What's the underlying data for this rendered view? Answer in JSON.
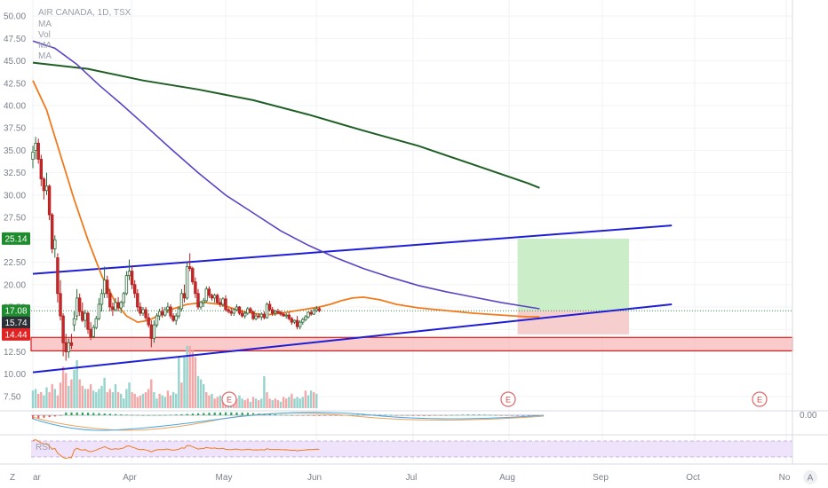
{
  "chart_data": {
    "type": "candlestick",
    "title": "AIR CANADA, 1D, TSX",
    "legend_lines": [
      "MA",
      "Vol",
      "MA",
      "MA"
    ],
    "y_ticks": [
      "50.00",
      "47.50",
      "45.00",
      "42.50",
      "40.00",
      "37.50",
      "35.00",
      "32.50",
      "30.00",
      "27.50",
      "25.00",
      "22.50",
      "20.00",
      "17.50",
      "15.00",
      "12.50",
      "10.00",
      "7.50"
    ],
    "x_ticks": [
      "ar",
      "Apr",
      "May",
      "Jun",
      "Jul",
      "Aug",
      "Sep",
      "Oct",
      "No"
    ],
    "price_badges": [
      {
        "label": "25.14",
        "value": 25.14,
        "color": "#1e8c2e"
      },
      {
        "label": "17.08",
        "value": 17.08,
        "color": "#1e8c2e"
      },
      {
        "label": "15.74",
        "value": 15.74,
        "color": "#2b2f36"
      },
      {
        "label": "14.44",
        "value": 14.44,
        "color": "#e02424"
      }
    ],
    "osc_label": "0.00",
    "rsi_label": "RSI",
    "earnings_label": "E",
    "bottom_left_label": "Z",
    "bottom_right_label": "A",
    "ylim": [
      6,
      51
    ],
    "candles": [
      {
        "o": 34.0,
        "h": 35.5,
        "l": 33.0,
        "c": 34.8
      },
      {
        "o": 35.0,
        "h": 36.5,
        "l": 34.0,
        "c": 35.8
      },
      {
        "o": 35.8,
        "h": 36.3,
        "l": 33.5,
        "c": 34.0
      },
      {
        "o": 34.0,
        "h": 34.5,
        "l": 31.0,
        "c": 31.8
      },
      {
        "o": 31.8,
        "h": 32.0,
        "l": 29.5,
        "c": 30.5
      },
      {
        "o": 30.5,
        "h": 32.5,
        "l": 30.0,
        "c": 31.0
      },
      {
        "o": 31.0,
        "h": 31.2,
        "l": 27.2,
        "c": 27.8
      },
      {
        "o": 27.8,
        "h": 28.0,
        "l": 23.5,
        "c": 24.0
      },
      {
        "o": 24.0,
        "h": 25.5,
        "l": 23.0,
        "c": 25.0
      },
      {
        "o": 23.0,
        "h": 23.5,
        "l": 18.0,
        "c": 19.0
      },
      {
        "o": 19.0,
        "h": 20.5,
        "l": 16.0,
        "c": 16.5
      },
      {
        "o": 16.5,
        "h": 16.8,
        "l": 12.0,
        "c": 13.5
      },
      {
        "o": 13.5,
        "h": 14.5,
        "l": 11.5,
        "c": 12.5
      },
      {
        "o": 12.5,
        "h": 14.0,
        "l": 11.8,
        "c": 13.5
      },
      {
        "o": 13.5,
        "h": 14.5,
        "l": 12.8,
        "c": 13.2
      },
      {
        "o": 15.5,
        "h": 17.0,
        "l": 14.8,
        "c": 16.2
      },
      {
        "o": 16.5,
        "h": 19.5,
        "l": 16.0,
        "c": 18.5
      },
      {
        "o": 18.5,
        "h": 19.0,
        "l": 16.5,
        "c": 17.0
      },
      {
        "o": 17.0,
        "h": 18.0,
        "l": 15.8,
        "c": 16.0
      },
      {
        "o": 16.0,
        "h": 17.2,
        "l": 15.2,
        "c": 16.8
      },
      {
        "o": 16.8,
        "h": 17.0,
        "l": 14.5,
        "c": 15.0
      },
      {
        "o": 15.0,
        "h": 15.8,
        "l": 13.8,
        "c": 14.2
      },
      {
        "o": 14.2,
        "h": 15.5,
        "l": 14.0,
        "c": 15.2
      },
      {
        "o": 15.2,
        "h": 16.5,
        "l": 15.0,
        "c": 16.2
      },
      {
        "o": 16.2,
        "h": 18.5,
        "l": 16.0,
        "c": 17.8
      },
      {
        "o": 17.8,
        "h": 19.5,
        "l": 17.0,
        "c": 19.0
      },
      {
        "o": 19.0,
        "h": 22.0,
        "l": 18.5,
        "c": 20.5
      },
      {
        "o": 20.5,
        "h": 21.0,
        "l": 18.5,
        "c": 19.0
      },
      {
        "o": 19.0,
        "h": 19.5,
        "l": 17.0,
        "c": 17.5
      },
      {
        "o": 17.5,
        "h": 18.0,
        "l": 16.5,
        "c": 17.2
      },
      {
        "o": 17.2,
        "h": 18.5,
        "l": 17.0,
        "c": 18.0
      },
      {
        "o": 18.0,
        "h": 18.6,
        "l": 17.0,
        "c": 17.4
      },
      {
        "o": 17.4,
        "h": 18.2,
        "l": 16.8,
        "c": 18.0
      },
      {
        "o": 18.0,
        "h": 19.2,
        "l": 17.5,
        "c": 19.0
      },
      {
        "o": 19.0,
        "h": 21.5,
        "l": 18.8,
        "c": 21.0
      },
      {
        "o": 21.0,
        "h": 22.8,
        "l": 20.5,
        "c": 21.5
      },
      {
        "o": 21.5,
        "h": 22.0,
        "l": 19.5,
        "c": 20.0
      },
      {
        "o": 20.0,
        "h": 20.5,
        "l": 18.5,
        "c": 19.0
      },
      {
        "o": 19.0,
        "h": 19.5,
        "l": 17.0,
        "c": 17.5
      },
      {
        "o": 17.5,
        "h": 18.0,
        "l": 16.5,
        "c": 16.8
      },
      {
        "o": 16.8,
        "h": 17.5,
        "l": 16.5,
        "c": 17.2
      },
      {
        "o": 17.2,
        "h": 17.5,
        "l": 16.0,
        "c": 16.3
      },
      {
        "o": 16.3,
        "h": 16.8,
        "l": 15.2,
        "c": 15.5
      },
      {
        "o": 15.5,
        "h": 16.0,
        "l": 13.0,
        "c": 14.0
      },
      {
        "o": 14.0,
        "h": 16.0,
        "l": 13.5,
        "c": 15.5
      },
      {
        "o": 15.5,
        "h": 16.8,
        "l": 15.2,
        "c": 16.5
      },
      {
        "o": 16.5,
        "h": 17.3,
        "l": 16.0,
        "c": 17.0
      },
      {
        "o": 17.0,
        "h": 17.5,
        "l": 16.3,
        "c": 16.6
      },
      {
        "o": 16.6,
        "h": 17.5,
        "l": 16.4,
        "c": 17.2
      },
      {
        "o": 17.2,
        "h": 18.0,
        "l": 16.8,
        "c": 17.5
      },
      {
        "o": 17.5,
        "h": 17.8,
        "l": 16.2,
        "c": 16.5
      },
      {
        "o": 16.5,
        "h": 16.8,
        "l": 15.8,
        "c": 16.0
      },
      {
        "o": 16.0,
        "h": 16.8,
        "l": 15.5,
        "c": 16.5
      },
      {
        "o": 16.5,
        "h": 17.5,
        "l": 16.2,
        "c": 17.3
      },
      {
        "o": 17.3,
        "h": 19.5,
        "l": 17.0,
        "c": 19.0
      },
      {
        "o": 19.0,
        "h": 20.0,
        "l": 18.0,
        "c": 18.5
      },
      {
        "o": 18.5,
        "h": 22.5,
        "l": 18.3,
        "c": 22.0
      },
      {
        "o": 22.0,
        "h": 23.5,
        "l": 21.5,
        "c": 21.8
      },
      {
        "o": 21.8,
        "h": 22.0,
        "l": 20.0,
        "c": 20.3
      },
      {
        "o": 20.3,
        "h": 20.8,
        "l": 18.5,
        "c": 19.0
      },
      {
        "o": 19.0,
        "h": 19.5,
        "l": 17.2,
        "c": 17.5
      },
      {
        "o": 17.5,
        "h": 18.2,
        "l": 17.2,
        "c": 18.0
      },
      {
        "o": 18.0,
        "h": 18.5,
        "l": 17.5,
        "c": 18.2
      },
      {
        "o": 18.2,
        "h": 19.8,
        "l": 18.0,
        "c": 19.5
      },
      {
        "o": 19.5,
        "h": 19.8,
        "l": 18.5,
        "c": 18.8
      },
      {
        "o": 18.8,
        "h": 19.0,
        "l": 18.2,
        "c": 18.5
      },
      {
        "o": 18.5,
        "h": 19.0,
        "l": 18.0,
        "c": 18.8
      },
      {
        "o": 18.8,
        "h": 19.0,
        "l": 17.8,
        "c": 18.0
      },
      {
        "o": 18.0,
        "h": 18.5,
        "l": 17.5,
        "c": 17.8
      },
      {
        "o": 17.8,
        "h": 18.6,
        "l": 17.5,
        "c": 18.4
      },
      {
        "o": 18.4,
        "h": 18.8,
        "l": 17.0,
        "c": 17.2
      },
      {
        "o": 17.2,
        "h": 17.4,
        "l": 16.8,
        "c": 17.0
      },
      {
        "o": 17.0,
        "h": 17.4,
        "l": 16.5,
        "c": 16.8
      },
      {
        "o": 16.8,
        "h": 17.3,
        "l": 16.5,
        "c": 17.2
      },
      {
        "o": 17.2,
        "h": 17.8,
        "l": 17.0,
        "c": 17.5
      },
      {
        "o": 17.5,
        "h": 17.6,
        "l": 16.6,
        "c": 16.8
      },
      {
        "o": 16.8,
        "h": 17.2,
        "l": 16.3,
        "c": 16.5
      },
      {
        "o": 16.5,
        "h": 17.0,
        "l": 16.2,
        "c": 16.8
      },
      {
        "o": 16.8,
        "h": 17.5,
        "l": 16.6,
        "c": 17.3
      },
      {
        "o": 17.3,
        "h": 17.5,
        "l": 16.8,
        "c": 17.0
      },
      {
        "o": 17.0,
        "h": 17.0,
        "l": 16.0,
        "c": 16.2
      },
      {
        "o": 16.2,
        "h": 16.8,
        "l": 16.0,
        "c": 16.5
      },
      {
        "o": 16.5,
        "h": 16.8,
        "l": 16.2,
        "c": 16.4
      },
      {
        "o": 16.4,
        "h": 16.9,
        "l": 16.0,
        "c": 16.7
      },
      {
        "o": 16.7,
        "h": 17.0,
        "l": 16.1,
        "c": 16.3
      },
      {
        "o": 16.3,
        "h": 18.0,
        "l": 16.2,
        "c": 17.8
      },
      {
        "o": 17.8,
        "h": 18.2,
        "l": 17.0,
        "c": 17.2
      },
      {
        "o": 17.2,
        "h": 17.5,
        "l": 16.5,
        "c": 16.8
      },
      {
        "o": 16.8,
        "h": 17.2,
        "l": 16.5,
        "c": 17.0
      },
      {
        "o": 17.0,
        "h": 17.3,
        "l": 16.7,
        "c": 16.9
      },
      {
        "o": 16.9,
        "h": 17.1,
        "l": 16.5,
        "c": 16.7
      },
      {
        "o": 16.7,
        "h": 16.9,
        "l": 16.4,
        "c": 16.5
      },
      {
        "o": 16.5,
        "h": 16.8,
        "l": 16.2,
        "c": 16.6
      },
      {
        "o": 16.6,
        "h": 16.9,
        "l": 16.0,
        "c": 16.2
      },
      {
        "o": 16.2,
        "h": 16.4,
        "l": 15.5,
        "c": 15.8
      },
      {
        "o": 15.8,
        "h": 16.1,
        "l": 15.6,
        "c": 16.0
      },
      {
        "o": 16.0,
        "h": 16.5,
        "l": 15.0,
        "c": 15.3
      },
      {
        "o": 15.3,
        "h": 16.0,
        "l": 15.0,
        "c": 15.8
      },
      {
        "o": 15.8,
        "h": 16.3,
        "l": 15.5,
        "c": 16.1
      },
      {
        "o": 16.1,
        "h": 16.6,
        "l": 15.9,
        "c": 16.4
      },
      {
        "o": 16.4,
        "h": 17.0,
        "l": 16.2,
        "c": 16.9
      },
      {
        "o": 16.9,
        "h": 17.2,
        "l": 16.5,
        "c": 16.7
      },
      {
        "o": 16.7,
        "h": 17.4,
        "l": 16.6,
        "c": 17.1
      },
      {
        "o": 17.1,
        "h": 17.6,
        "l": 16.9,
        "c": 17.3
      },
      {
        "o": 17.3,
        "h": 17.5,
        "l": 16.9,
        "c": 17.08
      }
    ],
    "volume": [
      {
        "v": 0.55,
        "up": true
      },
      {
        "v": 0.6,
        "up": true
      },
      {
        "v": 0.45,
        "up": false
      },
      {
        "v": 0.5,
        "up": false
      },
      {
        "v": 0.4,
        "up": true
      },
      {
        "v": 0.65,
        "up": true
      },
      {
        "v": 0.5,
        "up": false
      },
      {
        "v": 0.75,
        "up": false
      },
      {
        "v": 0.6,
        "up": true
      },
      {
        "v": 0.4,
        "up": false
      },
      {
        "v": 0.8,
        "up": false
      },
      {
        "v": 1.3,
        "up": false
      },
      {
        "v": 1.1,
        "up": false
      },
      {
        "v": 0.7,
        "up": true
      },
      {
        "v": 0.9,
        "up": false
      },
      {
        "v": 1.2,
        "up": true
      },
      {
        "v": 1.5,
        "up": true
      },
      {
        "v": 0.9,
        "up": false
      },
      {
        "v": 0.7,
        "up": false
      },
      {
        "v": 0.6,
        "up": true
      },
      {
        "v": 0.6,
        "up": false
      },
      {
        "v": 0.75,
        "up": false
      },
      {
        "v": 0.55,
        "up": true
      },
      {
        "v": 0.5,
        "up": true
      },
      {
        "v": 0.6,
        "up": true
      },
      {
        "v": 0.7,
        "up": true
      },
      {
        "v": 0.95,
        "up": true
      },
      {
        "v": 0.5,
        "up": false
      },
      {
        "v": 0.6,
        "up": false
      },
      {
        "v": 0.5,
        "up": true
      },
      {
        "v": 0.75,
        "up": true
      },
      {
        "v": 0.5,
        "up": false
      },
      {
        "v": 0.45,
        "up": true
      },
      {
        "v": 0.3,
        "up": true
      },
      {
        "v": 0.6,
        "up": true
      },
      {
        "v": 0.8,
        "up": true
      },
      {
        "v": 0.5,
        "up": false
      },
      {
        "v": 0.45,
        "up": false
      },
      {
        "v": 0.35,
        "up": false
      },
      {
        "v": 0.4,
        "up": false
      },
      {
        "v": 0.45,
        "up": true
      },
      {
        "v": 0.5,
        "up": false
      },
      {
        "v": 0.6,
        "up": false
      },
      {
        "v": 0.9,
        "up": false
      },
      {
        "v": 0.5,
        "up": true
      },
      {
        "v": 0.3,
        "up": true
      },
      {
        "v": 0.45,
        "up": false
      },
      {
        "v": 0.4,
        "up": true
      },
      {
        "v": 0.35,
        "up": true
      },
      {
        "v": 0.55,
        "up": false
      },
      {
        "v": 0.4,
        "up": false
      },
      {
        "v": 0.5,
        "up": true
      },
      {
        "v": 0.45,
        "up": true
      },
      {
        "v": 1.6,
        "up": true
      },
      {
        "v": 0.8,
        "up": false
      },
      {
        "v": 1.6,
        "up": true
      },
      {
        "v": 1.95,
        "up": true
      },
      {
        "v": 1.95,
        "up": false
      },
      {
        "v": 1.8,
        "up": false
      },
      {
        "v": 1.6,
        "up": false
      },
      {
        "v": 1.0,
        "up": true
      },
      {
        "v": 0.9,
        "up": true
      },
      {
        "v": 0.75,
        "up": true
      },
      {
        "v": 0.5,
        "up": false
      },
      {
        "v": 0.4,
        "up": false
      },
      {
        "v": 0.45,
        "up": true
      },
      {
        "v": 0.3,
        "up": false
      },
      {
        "v": 0.35,
        "up": false
      },
      {
        "v": 0.4,
        "up": true
      },
      {
        "v": 0.35,
        "up": false
      },
      {
        "v": 0.45,
        "up": false
      },
      {
        "v": 0.3,
        "up": true
      },
      {
        "v": 0.45,
        "up": true
      },
      {
        "v": 0.35,
        "up": false
      },
      {
        "v": 0.3,
        "up": false
      },
      {
        "v": 0.4,
        "up": true
      },
      {
        "v": 0.3,
        "up": true
      },
      {
        "v": 0.25,
        "up": false
      },
      {
        "v": 0.3,
        "up": false
      },
      {
        "v": 0.2,
        "up": true
      },
      {
        "v": 0.35,
        "up": false
      },
      {
        "v": 0.3,
        "up": true
      },
      {
        "v": 0.25,
        "up": false
      },
      {
        "v": 0.3,
        "up": true
      },
      {
        "v": 1.0,
        "up": true
      },
      {
        "v": 0.5,
        "up": false
      },
      {
        "v": 0.3,
        "up": false
      },
      {
        "v": 0.25,
        "up": true
      },
      {
        "v": 0.3,
        "up": false
      },
      {
        "v": 0.25,
        "up": false
      },
      {
        "v": 0.2,
        "up": true
      },
      {
        "v": 0.35,
        "up": false
      },
      {
        "v": 0.3,
        "up": false
      },
      {
        "v": 0.35,
        "up": true
      },
      {
        "v": 0.45,
        "up": false
      },
      {
        "v": 0.3,
        "up": true
      },
      {
        "v": 0.35,
        "up": true
      },
      {
        "v": 0.3,
        "up": true
      },
      {
        "v": 0.35,
        "up": true
      },
      {
        "v": 0.55,
        "up": false
      },
      {
        "v": 0.4,
        "up": true
      },
      {
        "v": 0.55,
        "up": true
      },
      {
        "v": 0.5,
        "up": false
      },
      {
        "v": 0.45,
        "up": true
      }
    ],
    "ma_orange": [
      [
        0,
        42.8
      ],
      [
        5,
        39.5
      ],
      [
        10,
        34.5
      ],
      [
        15,
        29.5
      ],
      [
        20,
        25
      ],
      [
        25,
        21
      ],
      [
        30,
        18
      ],
      [
        34,
        16.5
      ],
      [
        38,
        15.8
      ],
      [
        42,
        16.0
      ],
      [
        46,
        16.6
      ],
      [
        50,
        17.2
      ],
      [
        56,
        17.8
      ],
      [
        62,
        18.0
      ],
      [
        68,
        17.8
      ],
      [
        72,
        17.4
      ],
      [
        76,
        17.0
      ],
      [
        80,
        16.8
      ],
      [
        84,
        16.6
      ],
      [
        90,
        16.8
      ],
      [
        96,
        17.1
      ],
      [
        100,
        17.3
      ],
      [
        104,
        17.5
      ],
      [
        108,
        17.8
      ],
      [
        112,
        18.2
      ],
      [
        116,
        18.5
      ],
      [
        120,
        18.6
      ],
      [
        126,
        18.3
      ],
      [
        132,
        17.8
      ],
      [
        140,
        17.4
      ],
      [
        150,
        17.1
      ],
      [
        160,
        16.8
      ],
      [
        170,
        16.6
      ],
      [
        180,
        16.4
      ],
      [
        184,
        16.4
      ]
    ],
    "ma_purple": [
      [
        0,
        47.2
      ],
      [
        8,
        46.4
      ],
      [
        16,
        44.6
      ],
      [
        24,
        42.3
      ],
      [
        32,
        40.2
      ],
      [
        40,
        38.0
      ],
      [
        50,
        35.2
      ],
      [
        60,
        32.5
      ],
      [
        70,
        30.0
      ],
      [
        80,
        28.0
      ],
      [
        90,
        26.0
      ],
      [
        100,
        24.4
      ],
      [
        110,
        23.0
      ],
      [
        120,
        21.8
      ],
      [
        130,
        20.8
      ],
      [
        140,
        19.9
      ],
      [
        150,
        19.2
      ],
      [
        160,
        18.6
      ],
      [
        170,
        18.0
      ],
      [
        180,
        17.5
      ],
      [
        184,
        17.3
      ]
    ],
    "ma_green": [
      [
        0,
        44.8
      ],
      [
        20,
        44.1
      ],
      [
        40,
        42.8
      ],
      [
        60,
        41.8
      ],
      [
        80,
        40.6
      ],
      [
        100,
        39.0
      ],
      [
        120,
        37.2
      ],
      [
        140,
        35.5
      ],
      [
        160,
        33.4
      ],
      [
        180,
        31.3
      ],
      [
        184,
        30.8
      ]
    ],
    "trend_upper": [
      [
        0,
        21.2
      ],
      [
        232,
        26.6
      ]
    ],
    "trend_lower": [
      [
        0,
        10.2
      ],
      [
        232,
        17.8
      ]
    ],
    "support_zone": [
      12.6,
      14.1
    ],
    "target_box": [
      17.08,
      25.14
    ],
    "stop_box": [
      14.44,
      17.08
    ]
  }
}
